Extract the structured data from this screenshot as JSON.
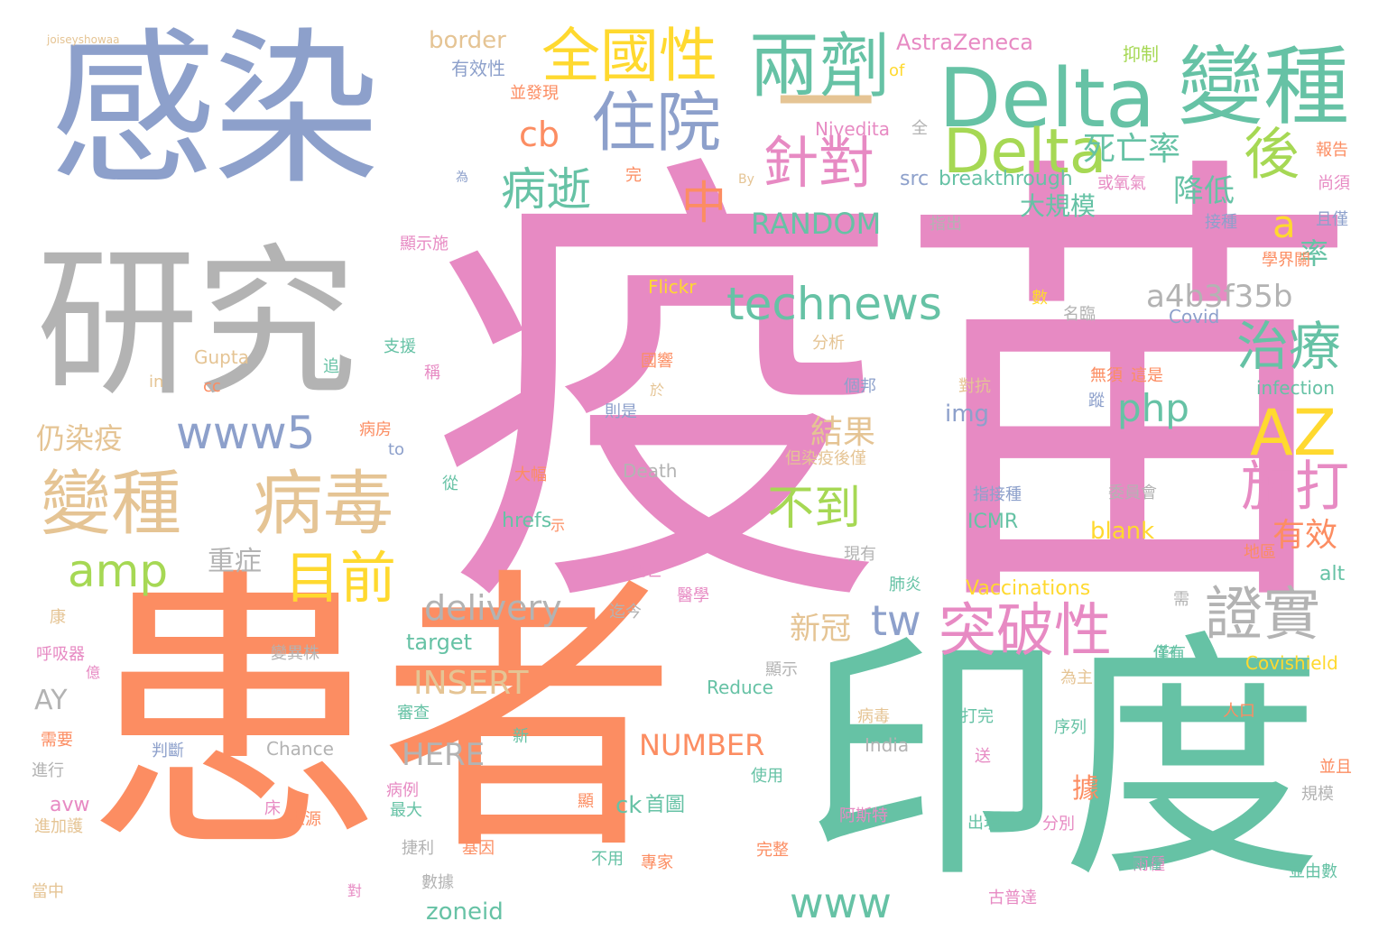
{
  "colors": {
    "pink": "#e78ac3",
    "orange": "#fc8d62",
    "teal": "#66c2a5",
    "periwinkle": "#8da0cb",
    "grey": "#b3b3b3",
    "tan": "#e5c494",
    "green": "#a6d854",
    "yellow": "#ffd92f"
  },
  "words": [
    "疫苗",
    "患者",
    "印度",
    "感染",
    "研究",
    "一",
    "Delta",
    "變種",
    "Delta",
    "兩劑",
    "全國性",
    "住院",
    "後",
    "針對",
    "病逝",
    "中",
    "cb",
    "死亡率",
    "technews",
    "RANDOM",
    "a",
    "a4b3f35b",
    "治療",
    "amp",
    "www5",
    "AZ",
    "變種",
    "病毒",
    "目前",
    "php",
    "施打",
    "不到",
    "結果",
    "仍染疫",
    "tw",
    "突破性",
    "證實",
    "有效",
    "www",
    "delivery",
    "重症",
    "INSERT",
    "HERE",
    "NUMBER",
    "新冠",
    "AY",
    "降低",
    "大規模",
    "率",
    "border",
    "AstraZeneca",
    "有效性",
    "Nivedita",
    "breakthrough",
    "src",
    "img",
    "blank",
    "ICMR",
    "Vaccinations",
    "target",
    "Reduce",
    "India",
    "Chance",
    "Covishield",
    "Covid",
    "infection",
    "Flickr",
    "Gupta",
    "alt",
    "zoneid",
    "ck",
    "首圖",
    "hrefs",
    "Death",
    "By",
    "of",
    "in",
    "cc",
    "to",
    "avw",
    "joiseyshowaa",
    "抑制",
    "報告",
    "尚須",
    "且僅",
    "或氧氣",
    "接種",
    "學界關",
    "名臨",
    "數",
    "分析",
    "個邦",
    "則是",
    "國響",
    "於",
    "對抗",
    "無須",
    "這是",
    "蹤",
    "支援",
    "追",
    "稱",
    "病房",
    "大幅",
    "從",
    "但染疫後僅",
    "委員會",
    "指接種",
    "現有",
    "地區",
    "死亡",
    "醫學",
    "迄今",
    "肺炎",
    "需",
    "僅有",
    "為主",
    "人口",
    "序列",
    "送",
    "打完",
    "變異株",
    "審查",
    "判斷",
    "新",
    "使用",
    "病毒",
    "阿斯特",
    "出現",
    "分別",
    "據",
    "捷利",
    "基因",
    "數據",
    "完整",
    "專家",
    "不用",
    "雨種",
    "古普達",
    "並由數",
    "並且",
    "規模",
    "當中",
    "對",
    "最大",
    "床",
    "來源",
    "病例",
    "顯",
    "進加護",
    "需要",
    "進行",
    "呼吸器",
    "億",
    "康",
    "顯示",
    "全",
    "為",
    "完",
    "指出",
    "並發現",
    "顯示施",
    "示",
    "兩種",
    "僅有"
  ]
}
